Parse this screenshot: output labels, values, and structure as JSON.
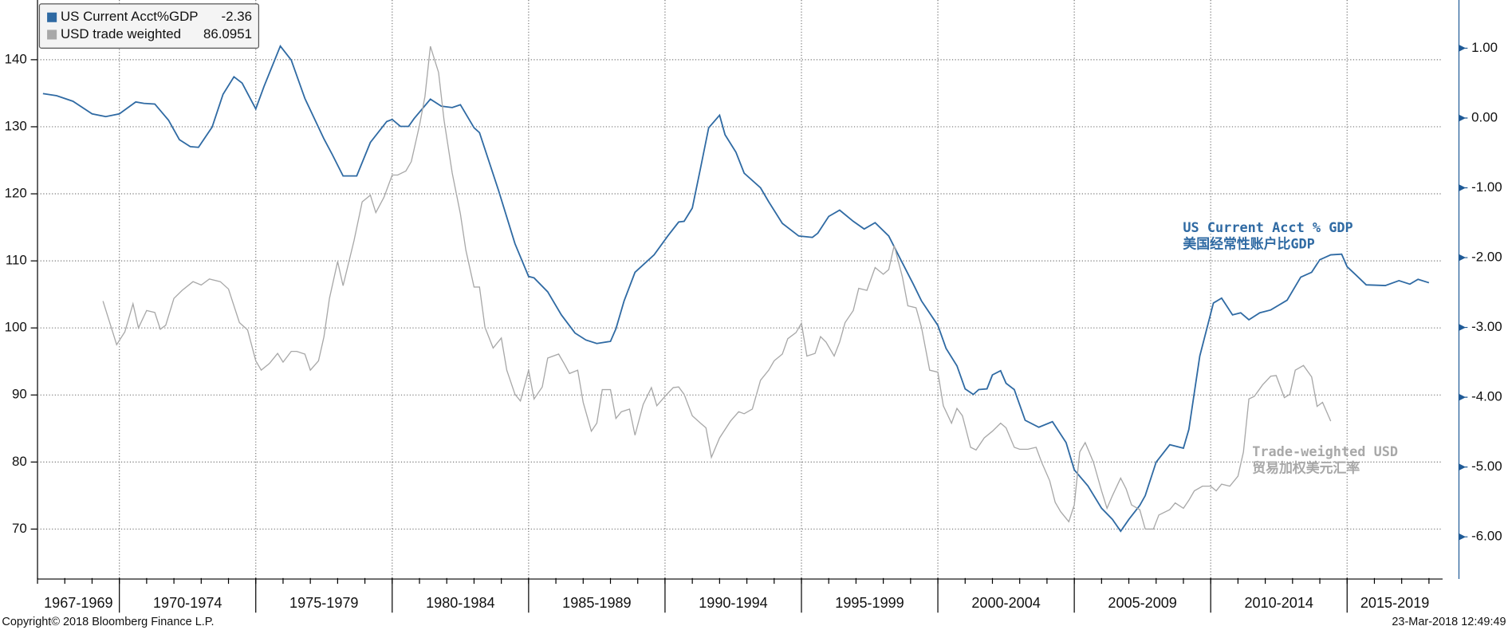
{
  "chart_data": {
    "type": "line",
    "xlim": [
      1967,
      2018.5
    ],
    "xticks": [
      1970,
      1975,
      1980,
      1985,
      1990,
      1995,
      2000,
      2005,
      2010,
      2015
    ],
    "xtick_labels": [
      "1967-1969",
      "1970-1974",
      "1975-1979",
      "1980-1984",
      "1985-1989",
      "1990-1994",
      "1995-1999",
      "2000-2004",
      "2005-2009",
      "2010-2014",
      "2015-2019"
    ],
    "ylim": [
      62.7,
      148.9
    ],
    "yticks": [
      70,
      80,
      90,
      100,
      110,
      120,
      130,
      140
    ],
    "y2lim": [
      -6.59,
      1.69
    ],
    "y2ticks": [
      {
        "value": 1,
        "label": "1.00"
      },
      {
        "value": 0,
        "label": "0.00"
      },
      {
        "value": -1,
        "label": "-1.00"
      },
      {
        "value": -2,
        "label": "-2.00"
      },
      {
        "value": -3,
        "label": "-3.00"
      },
      {
        "value": -4,
        "label": "-4.00"
      },
      {
        "value": -5,
        "label": "-5.00"
      },
      {
        "value": -6,
        "label": "-6.00"
      }
    ],
    "grid": true,
    "legend": "upper left",
    "annotations": [
      "US Current Acct % GDP",
      "美国经常性账户比GDP",
      "Trade-weighted USD",
      "贸易加权美元汇率"
    ],
    "footer_left": "Copyright© 2018 Bloomberg Finance L.P.",
    "footer_right": "23-Mar-2018 12:49:49",
    "series": [
      {
        "name": "US Current Acct%GDP",
        "color": "#2f6aa3",
        "axis": "y2",
        "x": [
          1967.2,
          1967.7,
          1968.3,
          1969.0,
          1969.5,
          1970.0,
          1970.6,
          1970.9,
          1971.3,
          1971.8,
          1972.2,
          1972.6,
          1972.9,
          1973.4,
          1973.8,
          1974.2,
          1974.5,
          1975.0,
          1975.3,
          1975.9,
          1976.3,
          1976.8,
          1977.5,
          1977.8,
          1978.2,
          1978.7,
          1979.2,
          1979.8,
          1980.0,
          1980.3,
          1980.6,
          1980.8,
          1981.4,
          1981.8,
          1982.2,
          1982.5,
          1983.0,
          1983.2,
          1983.9,
          1984.5,
          1985.0,
          1985.2,
          1985.7,
          1986.2,
          1986.7,
          1987.1,
          1987.5,
          1988.0,
          1988.2,
          1988.5,
          1988.9,
          1989.6,
          1990.1,
          1990.5,
          1990.7,
          1991.0,
          1991.3,
          1991.6,
          1992.0,
          1992.2,
          1992.6,
          1992.9,
          1993.5,
          1993.8,
          1994.3,
          1994.9,
          1995.4,
          1995.6,
          1996.0,
          1996.4,
          1996.9,
          1997.3,
          1997.7,
          1998.2,
          1998.6,
          1999.1,
          1999.4,
          2000.0,
          2000.3,
          2000.7,
          2001.0,
          2001.3,
          2001.5,
          2001.8,
          2002.0,
          2002.3,
          2002.5,
          2002.8,
          2003.2,
          2003.7,
          2004.2,
          2004.7,
          2005.0,
          2005.5,
          2006.0,
          2006.4,
          2006.7,
          2007.0,
          2007.4,
          2007.6,
          2008.0,
          2008.5,
          2009.0,
          2009.2,
          2009.6,
          2010.1,
          2010.4,
          2010.8,
          2011.1,
          2011.4,
          2011.8,
          2012.2,
          2012.8,
          2013.3,
          2013.7,
          2014.0,
          2014.4,
          2014.8,
          2015.0,
          2015.3,
          2015.7,
          2016.4,
          2016.9,
          2017.3,
          2017.6,
          2018.0
        ],
        "values": [
          0.35,
          0.32,
          0.24,
          0.06,
          0.02,
          0.06,
          0.23,
          0.21,
          0.2,
          -0.03,
          -0.31,
          -0.41,
          -0.42,
          -0.13,
          0.34,
          0.59,
          0.5,
          0.13,
          0.45,
          1.03,
          0.83,
          0.28,
          -0.3,
          -0.52,
          -0.83,
          -0.83,
          -0.35,
          -0.05,
          -0.02,
          -0.12,
          -0.12,
          -0.01,
          0.27,
          0.17,
          0.15,
          0.19,
          -0.14,
          -0.21,
          -1.04,
          -1.8,
          -2.27,
          -2.29,
          -2.49,
          -2.82,
          -3.08,
          -3.18,
          -3.23,
          -3.2,
          -3.02,
          -2.62,
          -2.21,
          -1.96,
          -1.69,
          -1.49,
          -1.48,
          -1.29,
          -0.72,
          -0.14,
          0.04,
          -0.24,
          -0.49,
          -0.79,
          -1.0,
          -1.2,
          -1.51,
          -1.69,
          -1.71,
          -1.65,
          -1.41,
          -1.32,
          -1.48,
          -1.59,
          -1.5,
          -1.69,
          -2.0,
          -2.38,
          -2.62,
          -2.97,
          -3.3,
          -3.55,
          -3.88,
          -3.96,
          -3.89,
          -3.88,
          -3.68,
          -3.62,
          -3.8,
          -3.89,
          -4.33,
          -4.43,
          -4.35,
          -4.65,
          -5.04,
          -5.27,
          -5.59,
          -5.75,
          -5.92,
          -5.75,
          -5.55,
          -5.41,
          -4.93,
          -4.68,
          -4.73,
          -4.46,
          -3.41,
          -2.65,
          -2.58,
          -2.82,
          -2.79,
          -2.89,
          -2.79,
          -2.75,
          -2.61,
          -2.28,
          -2.21,
          -2.03,
          -1.96,
          -1.95,
          -2.13,
          -2.24,
          -2.39,
          -2.4,
          -2.33,
          -2.38,
          -2.31,
          -2.36
        ]
      },
      {
        "name": "USD trade weighted",
        "color": "#a8a8a8",
        "x": [
          1969.4,
          1969.7,
          1969.9,
          1970.2,
          1970.5,
          1970.7,
          1971.0,
          1971.3,
          1971.5,
          1971.7,
          1972.0,
          1972.3,
          1972.7,
          1973.0,
          1973.3,
          1973.7,
          1974.0,
          1974.4,
          1974.7,
          1975.0,
          1975.2,
          1975.5,
          1975.8,
          1976.0,
          1976.3,
          1976.5,
          1976.8,
          1977.0,
          1977.3,
          1977.5,
          1977.7,
          1978.0,
          1978.2,
          1978.6,
          1978.9,
          1979.2,
          1979.4,
          1979.7,
          1980.0,
          1980.2,
          1980.5,
          1980.7,
          1981.0,
          1981.2,
          1981.4,
          1981.7,
          1981.9,
          1982.2,
          1982.5,
          1982.7,
          1983.0,
          1983.2,
          1983.4,
          1983.7,
          1984.0,
          1984.2,
          1984.5,
          1984.7,
          1985.0,
          1985.2,
          1985.5,
          1985.7,
          1986.1,
          1986.3,
          1986.5,
          1986.8,
          1987.0,
          1987.3,
          1987.5,
          1987.7,
          1988.0,
          1988.2,
          1988.4,
          1988.7,
          1988.9,
          1989.2,
          1989.5,
          1989.7,
          1990.0,
          1990.3,
          1990.5,
          1990.7,
          1991.0,
          1991.3,
          1991.5,
          1991.7,
          1992.0,
          1992.4,
          1992.7,
          1992.9,
          1993.2,
          1993.5,
          1993.8,
          1994.0,
          1994.3,
          1994.5,
          1994.8,
          1995.0,
          1995.2,
          1995.5,
          1995.7,
          1995.9,
          1996.2,
          1996.4,
          1996.6,
          1996.9,
          1997.1,
          1997.4,
          1997.7,
          1998.0,
          1998.2,
          1998.4,
          1998.7,
          1998.9,
          1999.2,
          1999.4,
          1999.7,
          2000.0,
          2000.2,
          2000.5,
          2000.7,
          2000.9,
          2001.2,
          2001.4,
          2001.7,
          2002.0,
          2002.3,
          2002.5,
          2002.8,
          2003.0,
          2003.3,
          2003.6,
          2003.8,
          2004.1,
          2004.3,
          2004.5,
          2004.8,
          2005.0,
          2005.2,
          2005.4,
          2005.7,
          2006.0,
          2006.2,
          2006.4,
          2006.7,
          2006.9,
          2007.1,
          2007.4,
          2007.6,
          2007.9,
          2008.1,
          2008.5,
          2008.7,
          2009.0,
          2009.2,
          2009.4,
          2009.7,
          2010.0,
          2010.2,
          2010.4,
          2010.7,
          2011.0,
          2011.2,
          2011.4,
          2011.6,
          2011.9,
          2012.2,
          2012.4,
          2012.7,
          2012.9,
          2013.1,
          2013.4,
          2013.7,
          2013.9,
          2014.1,
          2014.4
        ],
        "values": [
          104.0,
          100.1,
          97.5,
          99.4,
          103.6,
          100.0,
          102.6,
          102.3,
          99.8,
          100.4,
          104.4,
          105.6,
          106.9,
          106.4,
          107.3,
          106.9,
          105.8,
          100.8,
          99.7,
          95.1,
          93.7,
          94.7,
          96.2,
          94.9,
          96.5,
          96.5,
          96.1,
          93.7,
          95.1,
          98.7,
          104.4,
          109.9,
          106.3,
          113.0,
          118.8,
          119.8,
          117.2,
          119.5,
          122.8,
          122.8,
          123.4,
          124.8,
          130.2,
          134.5,
          142.0,
          138.1,
          131.0,
          123.1,
          117.0,
          111.6,
          106.1,
          106.1,
          100.1,
          97.0,
          98.5,
          93.7,
          90.1,
          89.1,
          93.7,
          89.4,
          91.2,
          95.5,
          96.1,
          94.7,
          93.2,
          93.7,
          88.9,
          84.6,
          85.8,
          90.8,
          90.8,
          86.5,
          87.5,
          87.9,
          84.0,
          88.6,
          91.1,
          88.4,
          89.8,
          91.1,
          91.2,
          90.1,
          86.9,
          85.8,
          85.1,
          80.7,
          83.6,
          86.1,
          87.5,
          87.2,
          87.9,
          92.2,
          93.7,
          95.1,
          96.1,
          98.4,
          99.3,
          100.7,
          95.8,
          96.2,
          98.7,
          97.9,
          95.8,
          97.9,
          100.8,
          102.6,
          105.9,
          105.6,
          109.0,
          108.0,
          108.7,
          112.3,
          107.6,
          103.3,
          103.0,
          100.1,
          93.7,
          93.4,
          88.4,
          85.8,
          88.0,
          86.9,
          82.2,
          81.8,
          83.6,
          84.6,
          85.8,
          85.1,
          82.2,
          81.9,
          81.9,
          82.2,
          80.0,
          77.2,
          74.0,
          72.6,
          71.1,
          73.6,
          81.5,
          82.9,
          80.0,
          75.7,
          73.1,
          75.0,
          77.6,
          76.0,
          73.6,
          72.9,
          70.0,
          70.0,
          72.1,
          72.9,
          73.9,
          73.1,
          74.3,
          75.7,
          76.4,
          76.4,
          75.7,
          76.7,
          76.4,
          77.9,
          81.5,
          89.4,
          89.8,
          91.5,
          92.8,
          92.9,
          89.6,
          90.1,
          93.7,
          94.4,
          92.7,
          88.3,
          88.9,
          86.0951
        ]
      }
    ]
  }
}
